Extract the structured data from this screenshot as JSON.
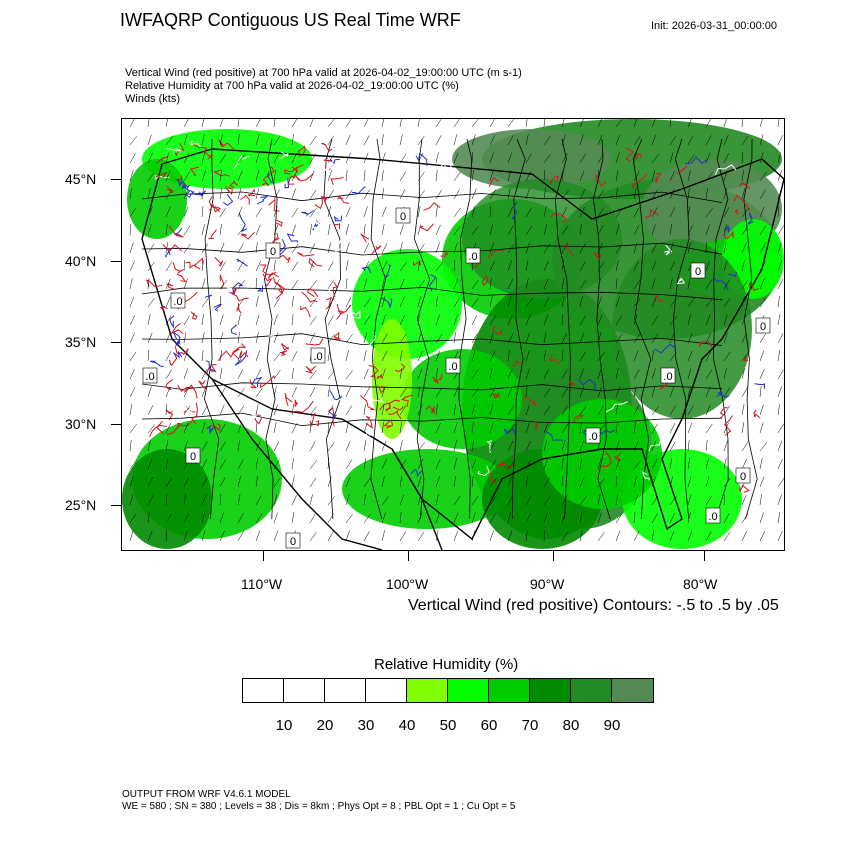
{
  "title": "IWFAQRP Contiguous US Real Time WRF",
  "init": "Init: 2026-03-31_00:00:00",
  "subtitles": [
    "Vertical Wind (red positive) at 700 hPa valid at 2026-04-02_19:00:00 UTC   (m s-1)",
    "Relative Humidity at 700 hPa valid at 2026-04-02_19:00:00 UTC   (%)",
    "Winds   (kts)"
  ],
  "lat_labels": [
    "45°N",
    "40°N",
    "35°N",
    "30°N",
    "25°N"
  ],
  "lon_labels": [
    "110°W",
    "100°W",
    "90°W",
    "80°W"
  ],
  "contour_note": "Vertical Wind (red positive) Contours: -.5 to .5 by .05",
  "legend": {
    "title": "Relative Humidity  (%)",
    "colors": [
      "#ffffff",
      "#ffffff",
      "#ffffff",
      "#ffffff",
      "#80ff00",
      "#00ff00",
      "#00cd00",
      "#008b00",
      "#228b22",
      "#548b54"
    ],
    "labels": [
      "10",
      "20",
      "30",
      "40",
      "50",
      "60",
      "70",
      "80",
      "90"
    ]
  },
  "footer": [
    "OUTPUT FROM WRF V4.6.1 MODEL",
    "WE = 580 ; SN = 380 ; Levels = 38 ; Dis = 8km ; Phys Opt = 8 ; PBL Opt = 1 ; Cu Opt = 5"
  ],
  "map_labels": [
    ".0",
    "0",
    ".0",
    "0",
    ".0",
    "0",
    ".0",
    "0",
    ".0",
    "0",
    ".0",
    "0",
    ".0",
    "0",
    ".0",
    "0"
  ]
}
